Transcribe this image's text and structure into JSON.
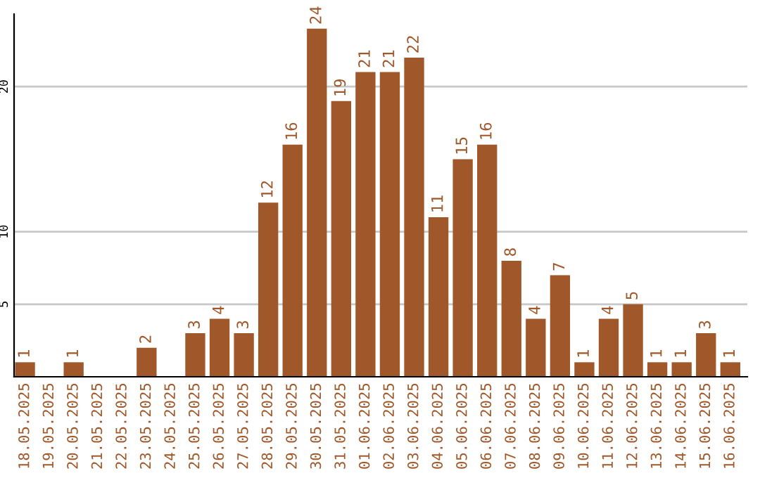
{
  "chart_data": {
    "type": "bar",
    "categories": [
      "18.05.2025",
      "19.05.2025",
      "20.05.2025",
      "21.05.2025",
      "22.05.2025",
      "23.05.2025",
      "24.05.2025",
      "25.05.2025",
      "26.05.2025",
      "27.05.2025",
      "28.05.2025",
      "29.05.2025",
      "30.05.2025",
      "31.05.2025",
      "01.06.2025",
      "02.06.2025",
      "03.06.2025",
      "04.06.2025",
      "05.06.2025",
      "06.06.2025",
      "07.06.2025",
      "08.06.2025",
      "09.06.2025",
      "10.06.2025",
      "11.06.2025",
      "12.06.2025",
      "13.06.2025",
      "14.06.2025",
      "15.06.2025",
      "16.06.2025"
    ],
    "values": [
      1,
      0,
      1,
      0,
      0,
      2,
      0,
      3,
      4,
      3,
      12,
      16,
      24,
      19,
      21,
      21,
      22,
      11,
      15,
      16,
      8,
      4,
      7,
      1,
      4,
      5,
      1,
      1,
      3,
      1
    ],
    "value_labels": [
      "1",
      null,
      "1",
      null,
      null,
      "2",
      null,
      "3",
      "4",
      "3",
      "12",
      "16",
      "24",
      "19",
      "21",
      "21",
      "22",
      "11",
      "15",
      "16",
      "8",
      "4",
      "7",
      "1",
      "4",
      "5",
      "1",
      "1",
      "3",
      "1"
    ],
    "color": "#a0582a",
    "ylim": [
      0,
      25
    ],
    "yticks": [
      5,
      10,
      20
    ],
    "grid": "y",
    "legend": false
  }
}
